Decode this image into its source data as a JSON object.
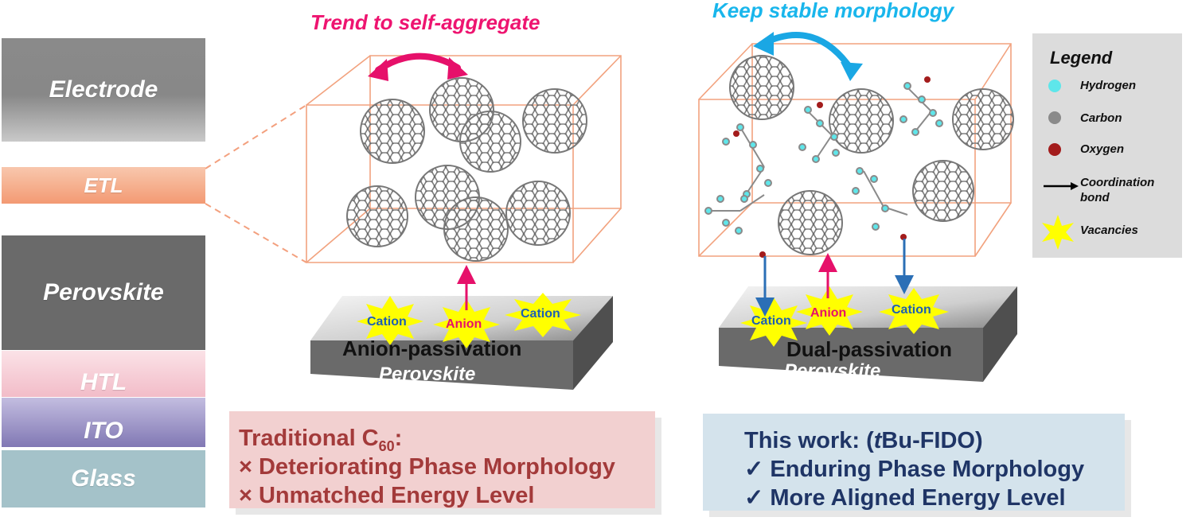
{
  "layers": [
    {
      "label": "Electrode",
      "color": "#8c8c8c"
    },
    {
      "label": "ETL",
      "color": "#f6b89a"
    },
    {
      "label": "Perovskite",
      "color": "#6b6b6b"
    },
    {
      "label": "HTL",
      "color": "#f3c5cf"
    },
    {
      "label": "ITO",
      "color": "#8f86bd"
    },
    {
      "label": "Glass",
      "color": "#a6c4cb"
    }
  ],
  "left_panel": {
    "title": "Trend to self-aggregate",
    "title_color": "#ee1470",
    "arrow_color": "#e6106a",
    "cations": [
      "Cation",
      "Cation"
    ],
    "anion": "Anion",
    "passivation": "Anion-passivation",
    "substrate": "Perovskite"
  },
  "right_panel": {
    "title": "Keep stable morphology",
    "title_color": "#19b6ec",
    "arrow_color": "#1aa7e4",
    "cations": [
      "Cation",
      "Cation"
    ],
    "anion": "Anion",
    "passivation": "Dual-passivation",
    "substrate": "Perovskite"
  },
  "traditional": {
    "title_prefix": "Traditional C",
    "title_sub": "60",
    "title_suffix": ":",
    "items": [
      "× Deteriorating Phase Morphology",
      "× Unmatched Energy Level"
    ],
    "text_color": "#a33a3a",
    "bg_color": "#f2d0d0"
  },
  "this_work": {
    "title_prefix": "This work: (",
    "title_italic": "t",
    "title_suffix": "Bu-FIDO)",
    "items": [
      "✓ Enduring Phase Morphology",
      "✓ More Aligned Energy Level"
    ],
    "text_color": "#1f3566",
    "bg_color": "#d4e3ec"
  },
  "legend": {
    "title": "Legend",
    "items": [
      {
        "label": "Hydrogen",
        "color": "#5ee6ea"
      },
      {
        "label": "Carbon",
        "color": "#8a8a8a"
      },
      {
        "label": "Oxygen",
        "color": "#a31c1c"
      },
      {
        "label": "Coordination bond",
        "color": "#000000"
      },
      {
        "label": "Vacancies",
        "color": "#ffff00"
      }
    ]
  }
}
